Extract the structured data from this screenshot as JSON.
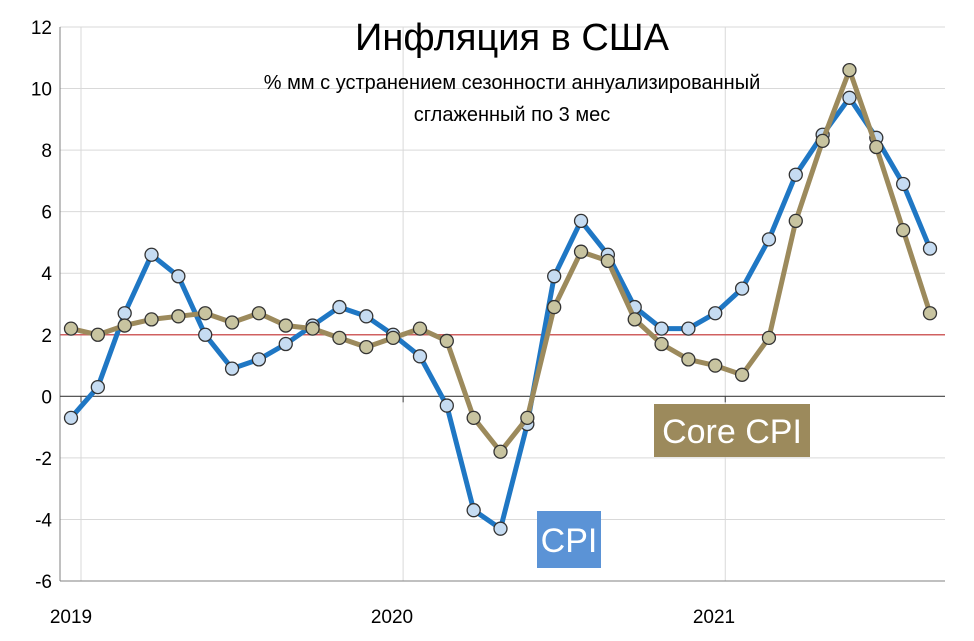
{
  "chart_data": {
    "type": "line",
    "title": "Инфляция в США",
    "subtitle_line1": "% мм с устранением сезонности аннуализированный",
    "subtitle_line2": "сглаженный по 3 мес",
    "ylim": [
      -6,
      12
    ],
    "y_ticks": [
      "12",
      "10",
      "8",
      "6",
      "4",
      "2",
      "0",
      "-2",
      "-4",
      "-6"
    ],
    "x_labels": [
      "2019",
      "2020",
      "2021"
    ],
    "grid": true,
    "reference_line": 2,
    "colors": {
      "cpi": "#1f77c4",
      "core": "#9c8a5c",
      "reference": "#d06060",
      "grid": "#d9d9d9",
      "cpi_marker": "#c6dcf2",
      "core_marker": "#c8c4a0"
    },
    "series": [
      {
        "name": "CPI",
        "values": [
          -0.7,
          0.3,
          2.7,
          4.6,
          3.9,
          2.0,
          0.9,
          1.2,
          1.7,
          2.3,
          2.9,
          2.6,
          2.0,
          1.3,
          -0.3,
          -3.7,
          -4.3,
          -0.9,
          3.9,
          5.7,
          4.6,
          2.9,
          2.2,
          2.2,
          2.7,
          3.5,
          5.1,
          7.2,
          8.5,
          9.7,
          8.4,
          6.9,
          4.8
        ]
      },
      {
        "name": "Core CPI",
        "values": [
          2.2,
          2.0,
          2.3,
          2.5,
          2.6,
          2.7,
          2.4,
          2.7,
          2.3,
          2.2,
          1.9,
          1.6,
          1.9,
          2.2,
          1.8,
          -0.7,
          -1.8,
          -0.7,
          2.9,
          4.7,
          4.4,
          2.5,
          1.7,
          1.2,
          1.0,
          0.7,
          1.9,
          5.7,
          8.3,
          10.6,
          8.1,
          5.4,
          2.7
        ]
      }
    ]
  }
}
